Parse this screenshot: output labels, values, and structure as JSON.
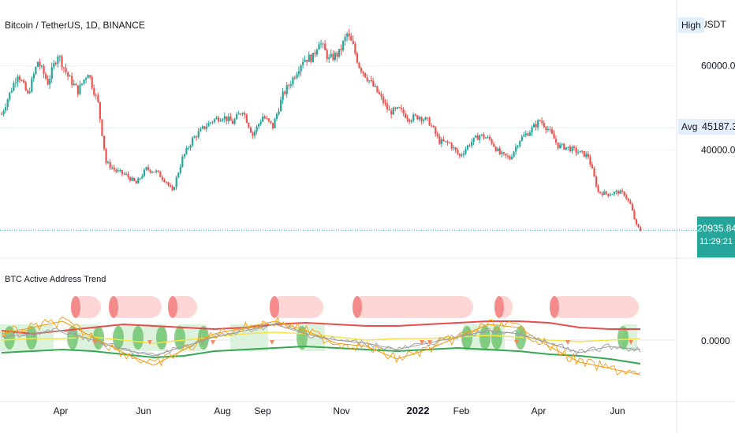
{
  "header": {
    "symbol_title": "Bitcoin / TetherUS, 1D, BINANCE",
    "currency": "USDT",
    "high_tag": "High",
    "avg_tag": "Avg",
    "avg_value": "45187.32",
    "last_price": "20935.84",
    "countdown": "11:29:21"
  },
  "indicator": {
    "title": "BTC Active Address Trend",
    "zero_label": "0.0000"
  },
  "colors": {
    "up": "#26a69a",
    "down": "#ef5350",
    "ind_red": "#e84c4c",
    "ind_green": "#34a853",
    "ind_yellow": "#f5e44a",
    "ind_orange": "#f39c12",
    "ind_gray": "#9e9e9e",
    "zone_red": "#ffd6d6",
    "zone_green": "#d4efd4"
  },
  "chart_data": [
    {
      "type": "candlestick",
      "title": "Bitcoin / TetherUS, 1D, BINANCE",
      "x_ticks": [
        "Apr",
        "Jun",
        "Aug",
        "Sep",
        "Nov",
        "2022",
        "Feb",
        "Apr",
        "Jun"
      ],
      "y_ticks": [
        40000,
        60000
      ],
      "y_range": [
        19500,
        70000
      ],
      "annotations": {
        "avg": 45187.32,
        "last": 20935.84
      },
      "close_path": [
        [
          0,
          48500
        ],
        [
          8,
          58200
        ],
        [
          13,
          53000
        ],
        [
          18,
          61000
        ],
        [
          23,
          56000
        ],
        [
          28,
          62800
        ],
        [
          33,
          57500
        ],
        [
          38,
          54000
        ],
        [
          43,
          58500
        ],
        [
          48,
          51000
        ],
        [
          52,
          37000
        ],
        [
          57,
          35000
        ],
        [
          62,
          34000
        ],
        [
          67,
          32000
        ],
        [
          72,
          35500
        ],
        [
          77,
          34800
        ],
        [
          82,
          32500
        ],
        [
          85,
          30000
        ],
        [
          90,
          38000
        ],
        [
          95,
          42500
        ],
        [
          100,
          45000
        ],
        [
          105,
          47000
        ],
        [
          110,
          48000
        ],
        [
          115,
          46500
        ],
        [
          120,
          49500
        ],
        [
          125,
          43500
        ],
        [
          130,
          48000
        ],
        [
          135,
          45500
        ],
        [
          140,
          53000
        ],
        [
          145,
          57000
        ],
        [
          150,
          61500
        ],
        [
          155,
          62000
        ],
        [
          158,
          66000
        ],
        [
          163,
          61500
        ],
        [
          168,
          63000
        ],
        [
          172,
          67500
        ],
        [
          175,
          64500
        ],
        [
          178,
          60000
        ],
        [
          183,
          56500
        ],
        [
          188,
          53000
        ],
        [
          193,
          49000
        ],
        [
          198,
          49500
        ],
        [
          203,
          47500
        ],
        [
          208,
          48000
        ],
        [
          213,
          46500
        ],
        [
          218,
          42000
        ],
        [
          223,
          41500
        ],
        [
          228,
          38500
        ],
        [
          233,
          41500
        ],
        [
          238,
          43500
        ],
        [
          243,
          42500
        ],
        [
          248,
          39000
        ],
        [
          253,
          38000
        ],
        [
          258,
          42500
        ],
        [
          263,
          44500
        ],
        [
          268,
          47000
        ],
        [
          272,
          45000
        ],
        [
          277,
          41000
        ],
        [
          282,
          40500
        ],
        [
          287,
          39500
        ],
        [
          292,
          38500
        ],
        [
          297,
          30000
        ],
        [
          302,
          29500
        ],
        [
          307,
          30000
        ],
        [
          310,
          29500
        ],
        [
          313,
          27000
        ],
        [
          316,
          22000
        ],
        [
          318,
          20935
        ]
      ]
    },
    {
      "type": "line",
      "title": "BTC Active Address Trend",
      "y_ticks": [
        0
      ],
      "series": [
        {
          "values": [
            0.3,
            0.2,
            0.3,
            0.4,
            0.5,
            0.45,
            0.4,
            0.35,
            0.4,
            0.5,
            0.55,
            0.5,
            0.45,
            0.45,
            0.5,
            0.55,
            0.6,
            0.6,
            0.55,
            0.4,
            0.35,
            0.35
          ]
        },
        {
          "values": [
            -0.4,
            -0.35,
            -0.3,
            -0.35,
            -0.45,
            -0.55,
            -0.5,
            -0.35,
            -0.3,
            -0.25,
            -0.2,
            -0.25,
            -0.3,
            -0.35,
            -0.3,
            -0.25,
            -0.3,
            -0.35,
            -0.45,
            -0.5,
            -0.6,
            -0.75
          ]
        },
        {
          "values": [
            0,
            0.05,
            0.05,
            0.1,
            0,
            -0.1,
            0,
            0.1,
            0.2,
            0.25,
            0.2,
            0.1,
            0,
            0.05,
            0.05,
            0.1,
            0.15,
            0.1,
            0,
            -0.05,
            0,
            0.05
          ]
        },
        {
          "values": [
            0.2,
            0.4,
            0.6,
            0.1,
            -0.4,
            -0.8,
            -0.3,
            0.2,
            0.4,
            0.6,
            0.3,
            -0.1,
            -0.2,
            -0.6,
            -0.3,
            0.1,
            0.5,
            0.4,
            -0.2,
            -0.7,
            -0.9,
            -1.1
          ]
        },
        {
          "values": [
            0.1,
            0.2,
            0.3,
            0,
            -0.3,
            -0.5,
            -0.2,
            0.1,
            0.3,
            0.5,
            0.2,
            0,
            -0.1,
            -0.3,
            -0.1,
            0.1,
            0.3,
            0.2,
            -0.1,
            -0.4,
            -0.2,
            -0.3
          ]
        }
      ]
    }
  ]
}
